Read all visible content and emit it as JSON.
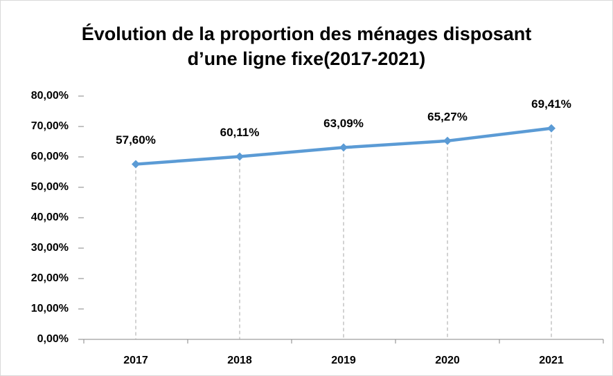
{
  "chart_data": {
    "type": "line",
    "title": "Évolution de la proportion des ménages disposant d’une ligne fixe(2017-2021)",
    "categories": [
      "2017",
      "2018",
      "2019",
      "2020",
      "2021"
    ],
    "series": [
      {
        "name": null,
        "color": "#5b9bd5",
        "values": [
          57.6,
          60.11,
          63.09,
          65.27,
          69.41
        ],
        "value_labels": [
          "57,60%",
          "60,11%",
          "63,09%",
          "65,27%",
          "69,41%"
        ]
      }
    ],
    "ylim": [
      0,
      80
    ],
    "yticks": [
      {
        "value": 0,
        "label": "0,00%"
      },
      {
        "value": 10,
        "label": "10,00%"
      },
      {
        "value": 20,
        "label": "20,00%"
      },
      {
        "value": 30,
        "label": "30,00%"
      },
      {
        "value": 40,
        "label": "40,00%"
      },
      {
        "value": 50,
        "label": "50,00%"
      },
      {
        "value": 60,
        "label": "60,00%"
      },
      {
        "value": 70,
        "label": "70,00%"
      },
      {
        "value": 80,
        "label": "80,00%"
      }
    ],
    "grid": false,
    "drop_lines": true
  }
}
